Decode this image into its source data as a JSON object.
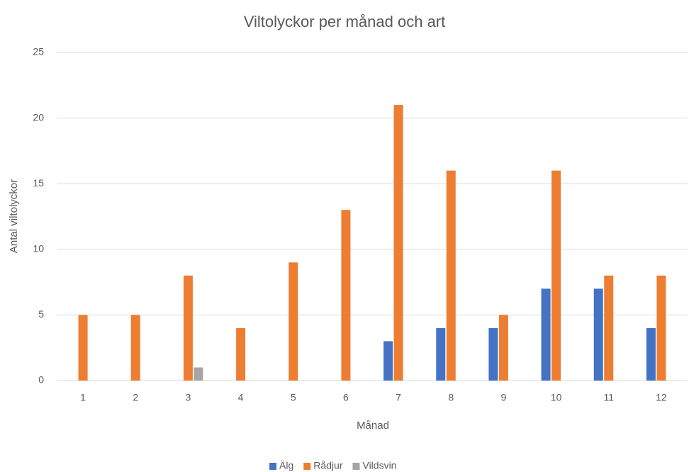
{
  "chart_data": {
    "type": "bar",
    "title": "Viltolyckor per månad och art",
    "x_label": "Månad",
    "y_label": "Antal viltolyckor",
    "categories": [
      "1",
      "2",
      "3",
      "4",
      "5",
      "6",
      "7",
      "8",
      "9",
      "10",
      "11",
      "12"
    ],
    "series": [
      {
        "name": "Älg",
        "color": "#4472c4",
        "values": [
          0,
          0,
          0,
          0,
          0,
          0,
          3,
          4,
          4,
          7,
          7,
          4
        ]
      },
      {
        "name": "Rådjur",
        "color": "#ed7d31",
        "values": [
          5,
          5,
          8,
          4,
          9,
          13,
          21,
          16,
          5,
          16,
          8,
          8
        ]
      },
      {
        "name": "Vildsvin",
        "color": "#a5a5a5",
        "values": [
          0,
          0,
          1,
          0,
          0,
          0,
          0,
          0,
          0,
          0,
          0,
          0
        ]
      }
    ],
    "ylim": [
      0,
      25
    ],
    "yticks": [
      0,
      5,
      10,
      15,
      20,
      25
    ],
    "grid": true,
    "legend": "bottom"
  }
}
